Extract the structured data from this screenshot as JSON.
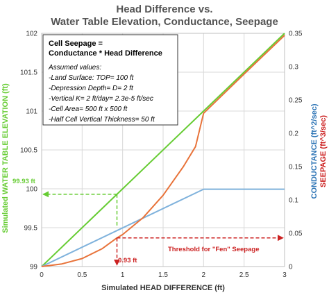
{
  "chart_data": {
    "type": "line",
    "title_line1": "Head Difference  vs.",
    "title_line2": "Water Table Elevation, Conductance,  Seepage",
    "xlabel": "Simulated HEAD DIFFERENCE  (ft)",
    "ylabel_left": "Simulated WATER TABLE ELEVATION  (ft)",
    "ylabel_right_1": "CONDUCTANCE (ft^2/sec)",
    "ylabel_right_2": "SEEPAGE (ft^3/sec)",
    "xlim": [
      0,
      3
    ],
    "ylim_left": [
      99,
      102
    ],
    "ylim_right": [
      0,
      0.35
    ],
    "x_ticks": [
      "0",
      "0.5",
      "1",
      "1.5",
      "2",
      "2.5",
      "3"
    ],
    "y_left_ticks": [
      "99",
      "99.5",
      "100",
      "100.5",
      "101",
      "101.5",
      "102"
    ],
    "y_right_ticks": [
      "0",
      "0.05",
      "0.1",
      "0.15",
      "0.2",
      "0.25",
      "0.3",
      "0.35"
    ],
    "grid": true,
    "series": [
      {
        "axis": "left",
        "color": "#66cc33",
        "points": [
          [
            0,
            99
          ],
          [
            1,
            100
          ],
          [
            2,
            101
          ],
          [
            3,
            102
          ]
        ]
      },
      {
        "axis": "right",
        "color": "#7fb2dc",
        "points": [
          [
            0,
            0
          ],
          [
            2,
            0.116
          ],
          [
            3,
            0.116
          ]
        ]
      },
      {
        "axis": "right",
        "color": "#e8733a",
        "points": [
          [
            0,
            0
          ],
          [
            0.25,
            0.004
          ],
          [
            0.5,
            0.012
          ],
          [
            0.75,
            0.027
          ],
          [
            0.93,
            0.043
          ],
          [
            1,
            0.048
          ],
          [
            1.25,
            0.073
          ],
          [
            1.5,
            0.107
          ],
          [
            1.75,
            0.15
          ],
          [
            1.9,
            0.18
          ],
          [
            2,
            0.23
          ],
          [
            2.5,
            0.289
          ],
          [
            3,
            0.347
          ]
        ]
      }
    ],
    "annotations": {
      "box_heading_1": "Cell Seepage =",
      "box_heading_2": "Conductance * Head Difference",
      "box_lines": [
        "Assumed values:",
        "-Land Surface: TOP= 100 ft",
        "-Depression Depth= D= 2 ft",
        "-Vertical K= 2 ft/day= 2.3e-5 ft/sec",
        "-Cell Area= 500 ft x 500 ft",
        "-Half Cell Vertical Thickness= 50 ft"
      ],
      "elevation_marker": {
        "x": 0.93,
        "y": 99.93,
        "label": "99.93 ft",
        "color": "#66cc33"
      },
      "head_marker": {
        "x": 0.93,
        "label": "0.93 ft",
        "color": "#cc2222"
      },
      "threshold": {
        "y_right": 0.043,
        "label": "Threshold for \"Fen\" Seepage",
        "color": "#cc2222"
      }
    }
  }
}
